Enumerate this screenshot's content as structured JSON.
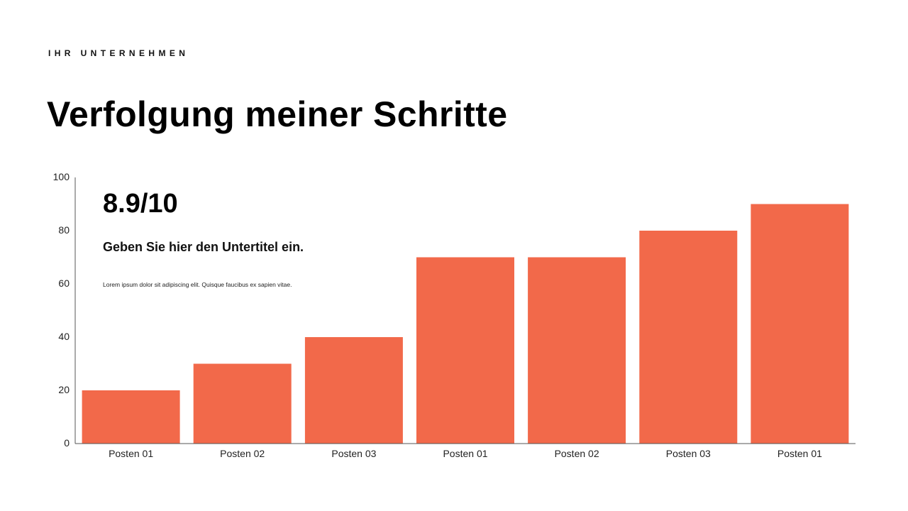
{
  "header": {
    "company": "IHR UNTERNEHMEN",
    "title": "Verfolgung meiner Schritte"
  },
  "overlay": {
    "score": "8.9/10",
    "subtitle": "Geben Sie hier den Untertitel ein.",
    "body": "Lorem ipsum dolor sit adipiscing elit. Quisque faucibus ex sapien vitae."
  },
  "colors": {
    "bar": "#F2694A",
    "axis": "#555555"
  },
  "chart_data": {
    "type": "bar",
    "title": "Verfolgung meiner Schritte",
    "xlabel": "",
    "ylabel": "",
    "categories": [
      "Posten 01",
      "Posten 02",
      "Posten 03",
      "Posten 01",
      "Posten 02",
      "Posten 03",
      "Posten 01"
    ],
    "values": [
      20,
      30,
      40,
      70,
      70,
      80,
      90
    ],
    "ylim": [
      0,
      100
    ],
    "yticks": [
      0,
      20,
      40,
      60,
      80,
      100
    ],
    "grid": false,
    "legend": "none"
  }
}
